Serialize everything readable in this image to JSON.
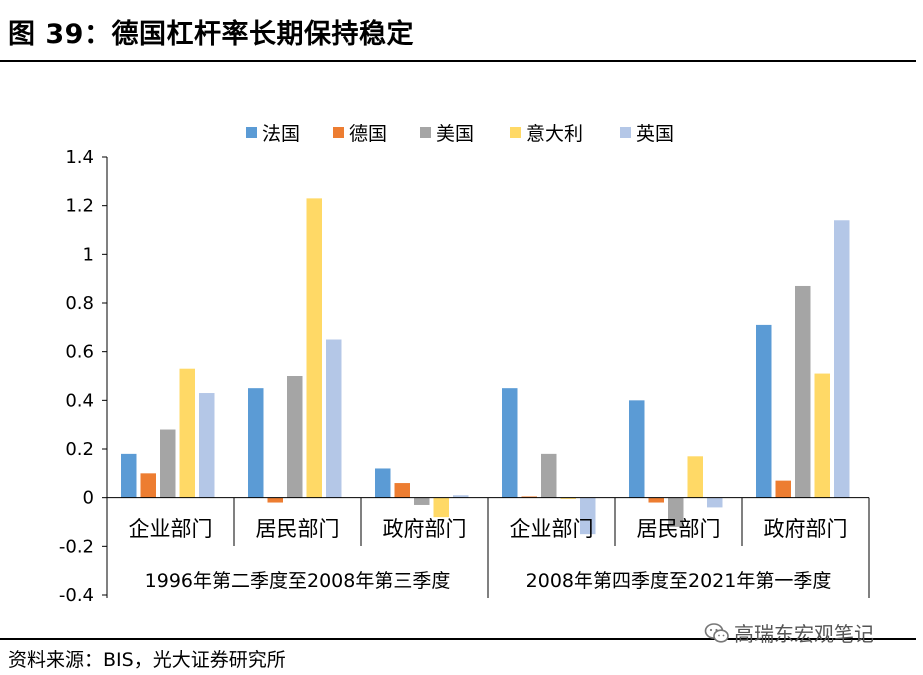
{
  "header": {
    "title": "图 39：德国杠杆率长期保持稳定"
  },
  "footer": {
    "source": "资料来源：BIS，光大证券研究所",
    "watermark": "高瑞东宏观笔记"
  },
  "chart_data": {
    "type": "bar",
    "title": "",
    "xlabel": "",
    "ylabel": "",
    "ylim": [
      -0.4,
      1.4
    ],
    "yticks": [
      "1.4",
      "1.2",
      "1",
      "0.8",
      "0.6",
      "0.4",
      "0.2",
      "0",
      "-0.2",
      "-0.4"
    ],
    "ytick_values": [
      1.4,
      1.2,
      1.0,
      0.8,
      0.6,
      0.4,
      0.2,
      0.0,
      -0.2,
      -0.4
    ],
    "grid": false,
    "legend_position": "top",
    "groups": [
      "1996年第二季度至2008年第三季度",
      "2008年第四季度至2021年第一季度"
    ],
    "categories": [
      "企业部门",
      "居民部门",
      "政府部门",
      "企业部门",
      "居民部门",
      "政府部门"
    ],
    "series": [
      {
        "name": "法国",
        "color": "#5B9BD5",
        "values": [
          0.18,
          0.45,
          0.12,
          0.45,
          0.4,
          0.71
        ]
      },
      {
        "name": "德国",
        "color": "#ED7D31",
        "values": [
          0.1,
          -0.02,
          0.06,
          0.005,
          -0.02,
          0.07
        ]
      },
      {
        "name": "美国",
        "color": "#A5A5A5",
        "values": [
          0.28,
          0.5,
          -0.03,
          0.18,
          -0.12,
          0.87
        ]
      },
      {
        "name": "意大利",
        "color": "#FFD966",
        "values": [
          0.53,
          1.23,
          -0.08,
          -0.005,
          0.17,
          0.51
        ]
      },
      {
        "name": "英国",
        "color": "#B4C7E7",
        "values": [
          0.43,
          0.65,
          0.01,
          -0.15,
          -0.04,
          1.14
        ]
      }
    ]
  }
}
